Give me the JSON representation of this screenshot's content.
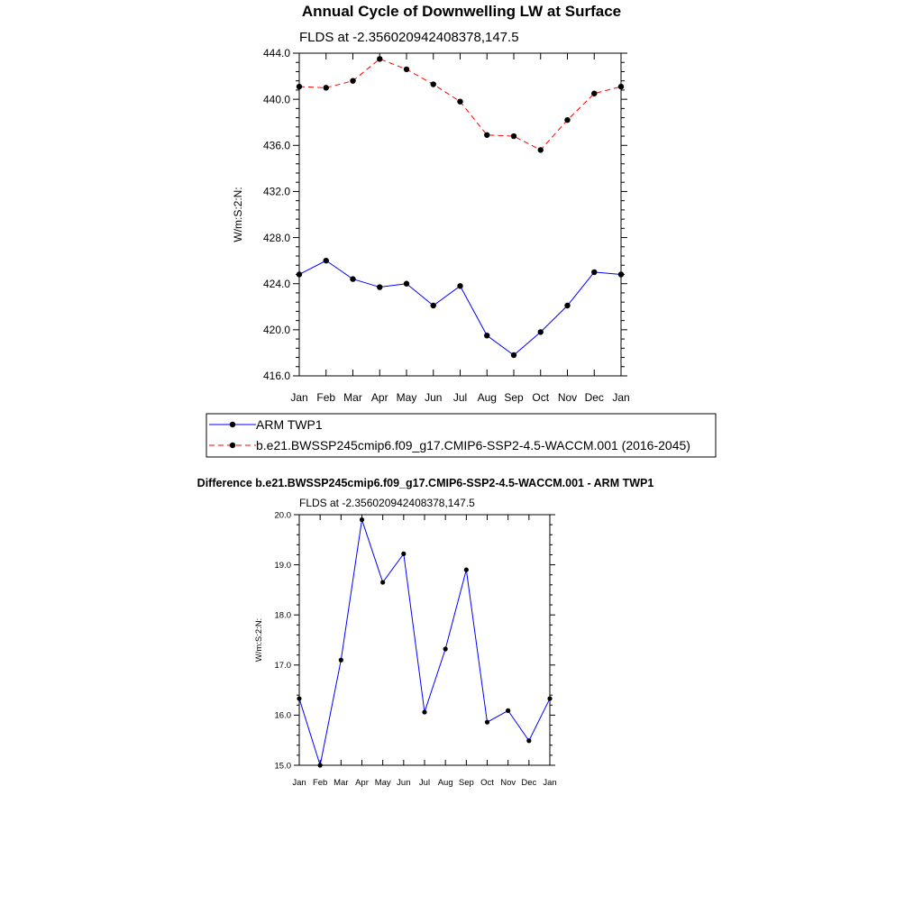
{
  "chart_data": [
    {
      "type": "line",
      "title": "Annual Cycle of Downwelling LW at Surface",
      "subtitle": "FLDS at -2.356020942408378,147.5",
      "ylabel": "W/m:S:2:N:",
      "ylim": [
        416.0,
        444.0
      ],
      "yticks": [
        "416.0",
        "420.0",
        "424.0",
        "428.0",
        "432.0",
        "436.0",
        "440.0",
        "444.0"
      ],
      "categories": [
        "Jan",
        "Feb",
        "Mar",
        "Apr",
        "May",
        "Jun",
        "Jul",
        "Aug",
        "Sep",
        "Oct",
        "Nov",
        "Dec",
        "Jan"
      ],
      "grid": false,
      "legend_position": "bottom",
      "series": [
        {
          "name": "ARM TWP1",
          "color": "#0000ff",
          "dash": "solid",
          "values": [
            424.8,
            426.0,
            424.4,
            423.7,
            424.0,
            422.1,
            423.8,
            419.5,
            417.8,
            419.8,
            422.1,
            425.0,
            424.8
          ]
        },
        {
          "name": "b.e21.BWSSP245cmip6.f09_g17.CMIP6-SSP2-4.5-WACCM.001 (2016-2045)",
          "color": "#ff0000",
          "dash": "dashed",
          "values": [
            441.1,
            441.0,
            441.6,
            443.5,
            442.6,
            441.3,
            439.8,
            436.9,
            436.8,
            435.6,
            438.2,
            440.5,
            441.1
          ]
        }
      ]
    },
    {
      "type": "line",
      "title": "Difference b.e21.BWSSP245cmip6.f09_g17.CMIP6-SSP2-4.5-WACCM.001 - ARM TWP1",
      "subtitle": "FLDS at -2.356020942408378,147.5",
      "ylabel": "W/m:S:2:N:",
      "ylim": [
        15.0,
        20.0
      ],
      "yticks": [
        "15.0",
        "16.0",
        "17.0",
        "18.0",
        "19.0",
        "20.0"
      ],
      "categories": [
        "Jan",
        "Feb",
        "Mar",
        "Apr",
        "May",
        "Jun",
        "Jul",
        "Aug",
        "Sep",
        "Oct",
        "Nov",
        "Dec",
        "Jan"
      ],
      "grid": false,
      "series": [
        {
          "color": "#0000ff",
          "dash": "solid",
          "values": [
            16.33,
            15.0,
            17.1,
            19.9,
            18.65,
            19.22,
            16.06,
            17.32,
            18.9,
            15.86,
            16.09,
            15.49,
            16.33
          ]
        }
      ]
    }
  ]
}
